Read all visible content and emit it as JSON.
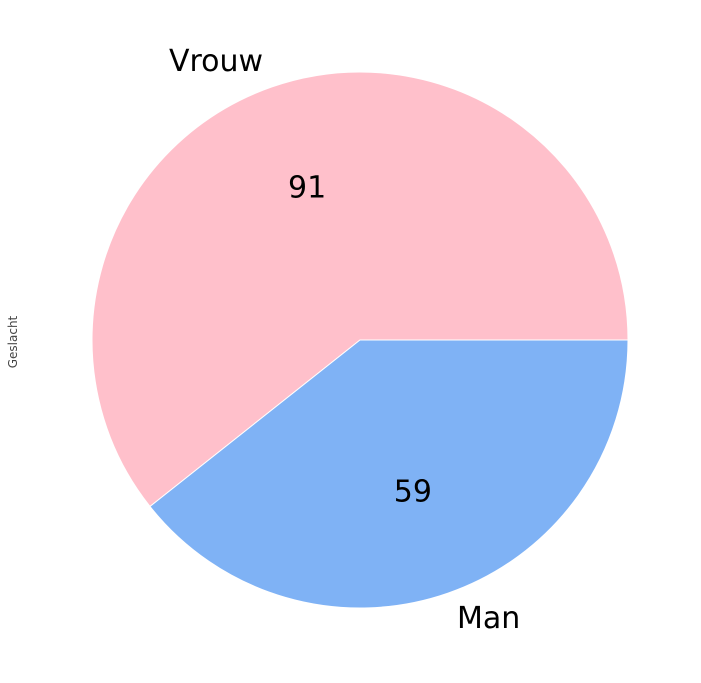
{
  "chart_data": {
    "type": "pie",
    "categories": [
      "Vrouw",
      "Man"
    ],
    "values": [
      91,
      59
    ],
    "colors": [
      "#ffc0cb",
      "#7fb2f5"
    ],
    "ylabel": "Geslacht",
    "title": "",
    "start_angle_deg": 0,
    "direction": "counterclockwise"
  }
}
